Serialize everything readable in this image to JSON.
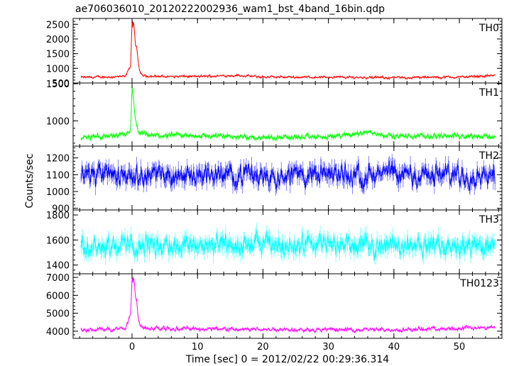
{
  "title": "ae706036010_20120222002936_wam1_bst_4band_16bin.qdp",
  "xlabel": "Time [sec] 0 = 2012/02/22 00:29:36.314",
  "ylabel": "Counts/sec",
  "chart_data": [
    {
      "type": "line",
      "label": "TH0",
      "color": "#ff0000",
      "xlim": [
        -9,
        56.5
      ],
      "ylim": [
        500,
        2700
      ],
      "yticks": [
        500,
        1000,
        1500,
        2000,
        2500
      ],
      "baseline": 700,
      "noise": 35,
      "x": [
        -7.8,
        -5,
        -1,
        -0.2,
        0.0,
        0.1,
        0.2,
        0.3,
        0.5,
        0.7,
        1.0,
        1.3,
        2.0,
        5,
        10,
        16,
        20,
        30,
        40,
        50,
        55.5
      ],
      "y": [
        690,
        700,
        720,
        1100,
        2700,
        2400,
        2600,
        2500,
        1800,
        1700,
        1100,
        800,
        740,
        720,
        720,
        760,
        700,
        700,
        680,
        700,
        760
      ]
    },
    {
      "type": "line",
      "label": "TH1",
      "color": "#00ff00",
      "xlim": [
        -9,
        56.5
      ],
      "ylim": [
        660,
        1510
      ],
      "yticks": [
        1000,
        1500
      ],
      "baseline": 790,
      "noise": 30,
      "x": [
        -7.8,
        -5,
        -1,
        -0.2,
        0.0,
        0.2,
        0.4,
        0.7,
        1.0,
        1.5,
        3,
        10,
        20,
        30,
        36,
        40,
        50,
        55.5
      ],
      "y": [
        770,
        790,
        800,
        900,
        1450,
        1300,
        1080,
        920,
        850,
        820,
        800,
        800,
        780,
        780,
        850,
        790,
        800,
        790
      ]
    },
    {
      "type": "line",
      "label": "TH2",
      "color": "#0000ff",
      "xlim": [
        -9,
        56.5
      ],
      "ylim": [
        890,
        1270
      ],
      "yticks": [
        900,
        1000,
        1100,
        1200
      ],
      "baseline": 1100,
      "noise": 55,
      "x": [
        -7.8,
        55.5
      ],
      "y": [
        1100,
        1100
      ]
    },
    {
      "type": "line",
      "label": "TH3",
      "color": "#00ffff",
      "xlim": [
        -9,
        56.5
      ],
      "ylim": [
        1330,
        1840
      ],
      "yticks": [
        1400,
        1600,
        1800
      ],
      "baseline": 1560,
      "noise": 70,
      "x": [
        -7.8,
        55.5
      ],
      "y": [
        1560,
        1560
      ]
    },
    {
      "type": "line",
      "label": "TH0123",
      "color": "#ff00ff",
      "xlim": [
        -9,
        56.5
      ],
      "ylim": [
        3600,
        7200
      ],
      "yticks": [
        4000,
        5000,
        6000,
        7000
      ],
      "baseline": 4100,
      "noise": 90,
      "x": [
        -7.8,
        -5,
        -1,
        -0.2,
        0.0,
        0.1,
        0.2,
        0.3,
        0.5,
        0.7,
        1.0,
        1.3,
        2.0,
        5,
        20,
        40,
        55.5
      ],
      "y": [
        4050,
        4100,
        4150,
        5000,
        7100,
        6800,
        7000,
        6900,
        6000,
        5700,
        4600,
        4250,
        4150,
        4150,
        4100,
        4080,
        4200
      ]
    }
  ],
  "xticks": [
    0,
    10,
    20,
    30,
    40,
    50
  ]
}
